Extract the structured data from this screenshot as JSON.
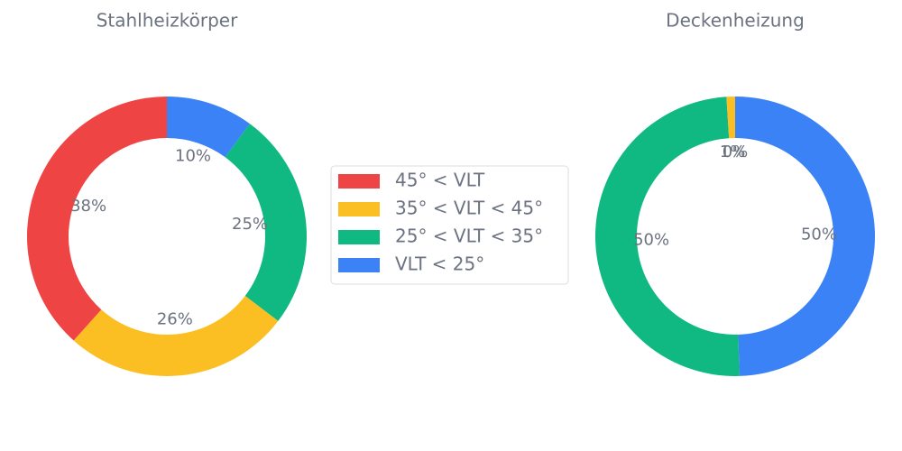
{
  "chart_data": [
    {
      "type": "doughnut",
      "title": "Stahlheizkörper",
      "categories": [
        "45° < VLT",
        "35° < VLT < 45°",
        "25° < VLT < 35°",
        "VLT < 25°"
      ],
      "colors": [
        "#ef4444",
        "#fbbf24",
        "#10b981",
        "#3b82f6"
      ],
      "values": [
        38,
        26,
        25,
        10
      ],
      "value_labels": [
        "38%",
        "26%",
        "25%",
        "10%"
      ]
    },
    {
      "type": "doughnut",
      "title": "Deckenheizung",
      "categories": [
        "45° < VLT",
        "35° < VLT < 45°",
        "25° < VLT < 35°",
        "VLT < 25°"
      ],
      "colors": [
        "#ef4444",
        "#fbbf24",
        "#10b981",
        "#3b82f6"
      ],
      "values": [
        0,
        1,
        50,
        50
      ],
      "value_labels": [
        "0%",
        "1%",
        "50%",
        "50%"
      ]
    }
  ]
}
